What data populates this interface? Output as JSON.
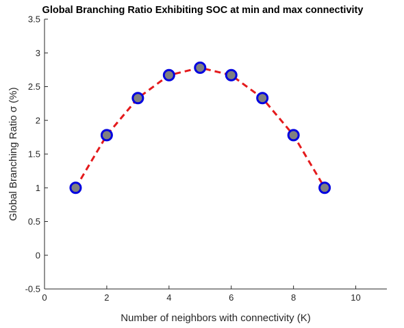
{
  "chart_data": {
    "type": "line",
    "title": "Global Branching Ratio Exhibiting SOC at min and max connectivity",
    "xlabel": "Number of neighbors with connectivity (K)",
    "ylabel": "Global Branching Ratio σ (%)",
    "xlim": [
      0,
      11
    ],
    "ylim": [
      -0.5,
      3.5
    ],
    "xticks": [
      0,
      2,
      4,
      6,
      8,
      10
    ],
    "yticks": [
      -0.5,
      0,
      0.5,
      1,
      1.5,
      2,
      2.5,
      3,
      3.5
    ],
    "grid": false,
    "series": [
      {
        "x": [
          1,
          2,
          3,
          4,
          5,
          6,
          7,
          8,
          9
        ],
        "y": [
          1.0,
          1.78,
          2.33,
          2.67,
          2.78,
          2.67,
          2.33,
          1.78,
          1.0
        ],
        "line_style": "dashed",
        "line_color": "#e41a1c",
        "marker": "circle",
        "marker_face_color": "#808080",
        "marker_edge_color": "#0000e0"
      }
    ]
  }
}
